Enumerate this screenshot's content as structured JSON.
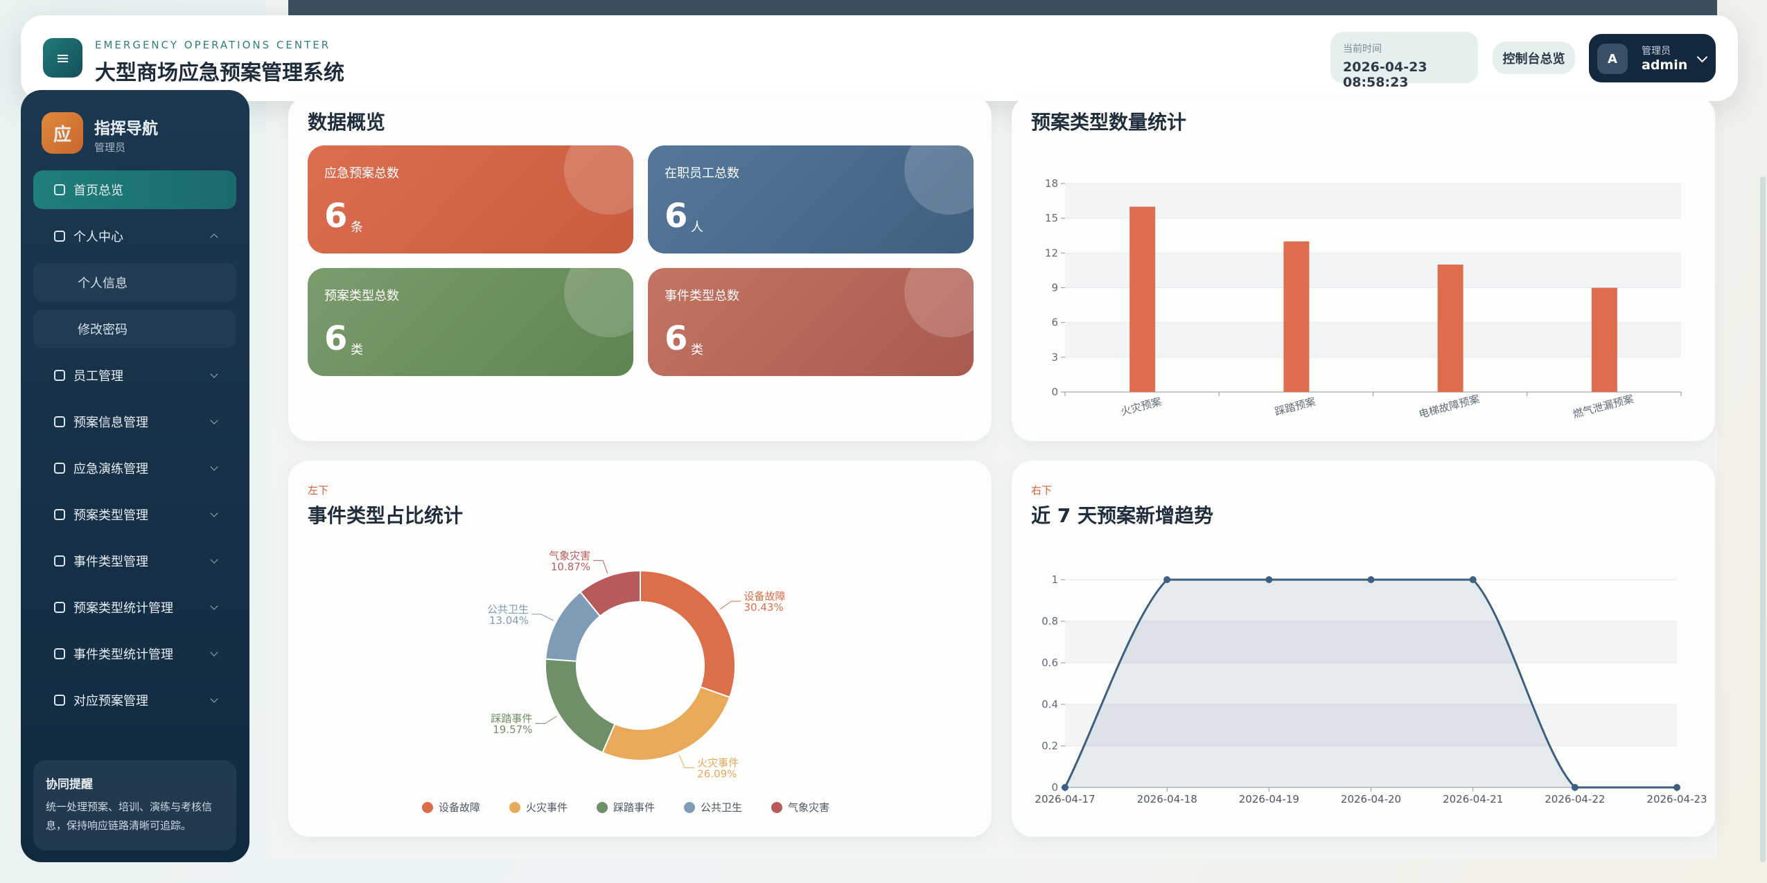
{
  "header": {
    "subtitle": "EMERGENCY OPERATIONS CENTER",
    "title": "大型商场应急预案管理系统",
    "time_label": "当前时间",
    "time": "2026-04-23 08:58:23",
    "console_button": "控制台总览",
    "avatar": "A",
    "role": "管理员",
    "user": "admin"
  },
  "sidebar": {
    "logo": "应",
    "title": "指挥导航",
    "role": "管理员",
    "menu": [
      {
        "label": "首页总览"
      },
      {
        "label": "个人中心",
        "children": [
          "个人信息",
          "修改密码"
        ]
      },
      {
        "label": "员工管理"
      },
      {
        "label": "预案信息管理"
      },
      {
        "label": "应急演练管理"
      },
      {
        "label": "预案类型管理"
      },
      {
        "label": "事件类型管理"
      },
      {
        "label": "预案类型统计管理"
      },
      {
        "label": "事件类型统计管理"
      },
      {
        "label": "对应预案管理"
      }
    ],
    "reminder": {
      "title": "协同提醒",
      "text": "统一处理预案、培训、演练与考核信息，保持响应链路清晰可追踪。"
    }
  },
  "overview": {
    "title": "数据概览",
    "cards": [
      {
        "label": "应急预案总数",
        "value": 6,
        "unit": "条"
      },
      {
        "label": "在职员工总数",
        "value": 6,
        "unit": "人"
      },
      {
        "label": "预案类型总数",
        "value": 6,
        "unit": "类"
      },
      {
        "label": "事件类型总数",
        "value": 6,
        "unit": "类"
      }
    ]
  },
  "chart_data": [
    {
      "type": "bar",
      "title": "预案类型数量统计",
      "categories": [
        "火灾预案",
        "踩踏预案",
        "电梯故障预案",
        "燃气泄漏预案"
      ],
      "values": [
        16,
        13,
        11,
        9
      ],
      "color": "#dd6d4e",
      "ylim": [
        0,
        18
      ],
      "yticks": [
        0,
        3,
        6,
        9,
        12,
        15,
        18
      ],
      "grid": true
    },
    {
      "type": "pie",
      "annotation": "左下",
      "title": "事件类型占比统计",
      "categories": [
        "设备故障",
        "火灾事件",
        "踩踏事件",
        "公共卫生",
        "气象灾害"
      ],
      "values": [
        30.43,
        26.09,
        19.57,
        13.04,
        10.87
      ],
      "value_labels": [
        "30.43%",
        "26.09%",
        "19.57%",
        "13.04%",
        "10.87%"
      ],
      "colors": [
        "#dd6e4a",
        "#e8a95a",
        "#6e8f67",
        "#7f9cb6",
        "#b85a5c"
      ]
    },
    {
      "type": "line",
      "annotation": "右下",
      "title": "近 7 天预案新增趋势",
      "x": [
        "2026-04-17",
        "2026-04-18",
        "2026-04-19",
        "2026-04-20",
        "2026-04-21",
        "2026-04-22",
        "2026-04-23"
      ],
      "values": [
        0,
        1,
        1,
        1,
        1,
        0,
        0
      ],
      "color": "#3d5f80",
      "ylim": [
        0,
        1
      ],
      "yticks": [
        0,
        0.2,
        0.4,
        0.6,
        0.8,
        1
      ],
      "grid": true
    }
  ]
}
